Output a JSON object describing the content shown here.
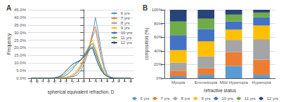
{
  "chart_data": [
    {
      "type": "line",
      "title": "A",
      "xlabel": "spherical equivalent refraction, D",
      "ylabel": "Frequency",
      "x": [
        -9.0,
        -8.5,
        -8.0,
        -7.5,
        -7.0,
        -6.5,
        -6.0,
        -5.5,
        -5.0,
        -4.5,
        -4.0,
        -3.5,
        -3.0,
        -2.5,
        -2.0,
        -1.5,
        -1.0,
        -0.5,
        0.0,
        0.5,
        1.0,
        1.5,
        2.0,
        2.5,
        3.0,
        3.5,
        4.0,
        4.5,
        5.0,
        5.5,
        6.0,
        6.5,
        7.0,
        7.5,
        8.0
      ],
      "series": [
        {
          "name": "6 yrs",
          "color": "#5B9BD5",
          "values": [
            0,
            0,
            0,
            0,
            0,
            0,
            0,
            0,
            0,
            0.1,
            0.1,
            0.2,
            0.3,
            0.5,
            0.8,
            1.5,
            2.5,
            5,
            9,
            14,
            20,
            28,
            40,
            30,
            18,
            8,
            3,
            1,
            0.3,
            0.1,
            0,
            0,
            0,
            0,
            0
          ]
        },
        {
          "name": "7 yrs",
          "color": "#ED7D31",
          "values": [
            0,
            0,
            0,
            0,
            0,
            0,
            0,
            0,
            0,
            0.1,
            0.1,
            0.2,
            0.4,
            0.7,
            1.2,
            2.5,
            4,
            7,
            11,
            16,
            22,
            30,
            34,
            26,
            14,
            6,
            2,
            0.5,
            0.2,
            0.1,
            0,
            0,
            0,
            0,
            0
          ]
        },
        {
          "name": "8 yrs",
          "color": "#A5A5A5",
          "values": [
            0,
            0,
            0,
            0,
            0,
            0,
            0,
            0,
            0,
            0.1,
            0.1,
            0.3,
            0.5,
            0.9,
            1.5,
            3,
            5,
            8,
            12,
            17,
            22,
            27,
            32,
            22,
            13,
            6,
            2,
            0.5,
            0.2,
            0.1,
            0,
            0,
            0,
            0,
            0
          ]
        },
        {
          "name": "9 yrs",
          "color": "#FFC000",
          "values": [
            0,
            0,
            0,
            0,
            0,
            0,
            0,
            0,
            0,
            0.1,
            0.2,
            0.4,
            0.7,
            1.2,
            2,
            4,
            6,
            9,
            13,
            18,
            22,
            25,
            20,
            14,
            8,
            4,
            1.5,
            0.5,
            0.2,
            0.1,
            0,
            0,
            0,
            0,
            0
          ]
        },
        {
          "name": "10 yrs",
          "color": "#4472C4",
          "values": [
            0,
            0,
            0,
            0,
            0,
            0,
            0,
            0,
            0.1,
            0.2,
            0.5,
            1,
            2,
            3.5,
            5.5,
            8,
            10,
            12,
            15,
            18,
            21,
            23,
            18,
            12,
            7,
            3,
            1.5,
            0.5,
            0.2,
            0.1,
            0,
            0,
            0,
            0,
            0
          ]
        },
        {
          "name": "11 yrs",
          "color": "#70AD47",
          "values": [
            0,
            0,
            0,
            0,
            0,
            0,
            0,
            0.1,
            0.2,
            0.5,
            1,
            2,
            3.5,
            5.5,
            7,
            9,
            11,
            12,
            14,
            17,
            20,
            21,
            16,
            11,
            6,
            3,
            1.5,
            0.5,
            0.2,
            0.1,
            0,
            0,
            0,
            0,
            0
          ]
        },
        {
          "name": "12 yrs",
          "color": "#264478",
          "values": [
            0,
            0,
            0,
            0,
            0,
            0,
            0,
            0.1,
            0.3,
            0.7,
            1.5,
            3,
            5,
            7,
            9,
            10,
            11,
            12,
            14,
            16,
            19,
            20,
            14,
            9,
            5,
            2.5,
            1.2,
            0.4,
            0.2,
            0.1,
            0,
            0,
            0,
            0,
            0
          ]
        }
      ],
      "xlim": [
        -9.5,
        8.5
      ],
      "xticks": [
        -9,
        -8,
        -7,
        -6,
        -5,
        -4,
        -3,
        -2,
        -1,
        0,
        1,
        2,
        3,
        4,
        5,
        6,
        7,
        8
      ],
      "ylim": [
        0,
        45
      ],
      "yticks": [
        {
          "value": 0,
          "label": "0.0%"
        },
        {
          "value": 5,
          "label": "5.0%"
        },
        {
          "value": 10,
          "label": "10.0%"
        },
        {
          "value": 15,
          "label": "15.0%"
        },
        {
          "value": 20,
          "label": "20.0%"
        },
        {
          "value": 25,
          "label": "25.0%"
        },
        {
          "value": 30,
          "label": "30.0%"
        },
        {
          "value": 35,
          "label": "35.0%"
        },
        {
          "value": 40,
          "label": "40.0%"
        },
        {
          "value": 45,
          "label": "45.0%"
        }
      ],
      "grid": true,
      "legend": "upper right"
    },
    {
      "type": "bar",
      "title": "B",
      "xlabel": "refractive status",
      "ylabel": "composition (%)",
      "categories": [
        "Myopia",
        "Emmetropia",
        "Mild Hyperopia",
        "Hyperopia"
      ],
      "series": [
        {
          "name": "6 yrs",
          "color": "#5B9BD5",
          "values": [
            3,
            5,
            18,
            5
          ]
        },
        {
          "name": "7 yrs",
          "color": "#ED7D31",
          "values": [
            8,
            10,
            20,
            22
          ]
        },
        {
          "name": "8 yrs",
          "color": "#A5A5A5",
          "values": [
            12,
            17,
            18,
            30
          ]
        },
        {
          "name": "9 yrs",
          "color": "#FFC000",
          "values": [
            18,
            22,
            15,
            20
          ]
        },
        {
          "name": "10 yrs",
          "color": "#4472C4",
          "values": [
            22,
            18,
            12,
            12
          ]
        },
        {
          "name": "11 yrs",
          "color": "#70AD47",
          "values": [
            20,
            15,
            10,
            7
          ]
        },
        {
          "name": "12 yrs",
          "color": "#264478",
          "values": [
            17,
            13,
            7,
            4
          ]
        }
      ],
      "stacked": true,
      "ylim": [
        0,
        100
      ],
      "yticks": [
        {
          "value": 0,
          "label": "0%"
        },
        {
          "value": 20,
          "label": "20%"
        },
        {
          "value": 40,
          "label": "40%"
        },
        {
          "value": 60,
          "label": "60%"
        },
        {
          "value": 80,
          "label": "80%"
        },
        {
          "value": 100,
          "label": "100%"
        }
      ],
      "grid": true,
      "legend": "bottom"
    }
  ]
}
